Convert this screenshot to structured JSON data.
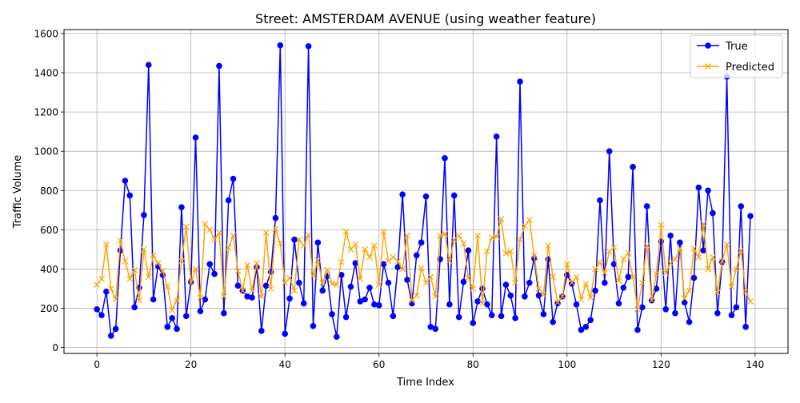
{
  "chart_data": {
    "type": "line",
    "title": "Street: AMSTERDAM AVENUE (using weather feature)",
    "xlabel": "Time Index",
    "ylabel": "Traffic Volume",
    "xlim": [
      -7,
      147
    ],
    "ylim": [
      -30,
      1620
    ],
    "xticks": [
      0,
      20,
      40,
      60,
      80,
      100,
      120,
      140
    ],
    "yticks": [
      0,
      200,
      400,
      600,
      800,
      1000,
      1200,
      1400,
      1600
    ],
    "xtick_labels": [
      "0",
      "20",
      "40",
      "60",
      "80",
      "100",
      "120",
      "140"
    ],
    "ytick_labels": [
      "0",
      "200",
      "400",
      "600",
      "800",
      "1000",
      "1200",
      "1400",
      "1600"
    ],
    "grid": true,
    "legend_position": "top-right",
    "series": [
      {
        "name": "True",
        "color": "#0000ff",
        "marker": "circle",
        "values": [
          195,
          165,
          285,
          60,
          95,
          495,
          850,
          775,
          205,
          305,
          675,
          1440,
          245,
          415,
          370,
          105,
          150,
          95,
          715,
          160,
          335,
          1070,
          185,
          245,
          425,
          375,
          1435,
          175,
          750,
          860,
          315,
          290,
          260,
          255,
          410,
          85,
          315,
          385,
          660,
          1540,
          70,
          250,
          550,
          330,
          225,
          1535,
          110,
          535,
          290,
          365,
          170,
          55,
          370,
          155,
          310,
          430,
          235,
          245,
          305,
          220,
          215,
          425,
          330,
          160,
          410,
          780,
          345,
          225,
          470,
          535,
          770,
          105,
          95,
          450,
          965,
          220,
          775,
          155,
          335,
          495,
          125,
          235,
          300,
          220,
          165,
          1075,
          160,
          320,
          265,
          150,
          1355,
          260,
          330,
          455,
          265,
          170,
          450,
          130,
          225,
          260,
          370,
          325,
          220,
          90,
          105,
          140,
          290,
          750,
          330,
          1000,
          425,
          225,
          305,
          360,
          920,
          90,
          205,
          720,
          240,
          300,
          540,
          195,
          570,
          175,
          535,
          230,
          130,
          355,
          815,
          495,
          800,
          685,
          175,
          435,
          1380,
          165,
          205,
          720,
          105,
          670
        ]
      },
      {
        "name": "Predicted",
        "color": "#ffa500",
        "marker": "x",
        "values": [
          320,
          350,
          525,
          300,
          245,
          545,
          440,
          350,
          395,
          240,
          500,
          360,
          470,
          430,
          390,
          310,
          190,
          240,
          440,
          615,
          330,
          400,
          255,
          630,
          600,
          550,
          585,
          260,
          510,
          570,
          390,
          290,
          420,
          290,
          430,
          260,
          585,
          300,
          605,
          530,
          330,
          355,
          290,
          550,
          520,
          575,
          365,
          445,
          330,
          395,
          325,
          320,
          435,
          590,
          500,
          525,
          350,
          500,
          460,
          520,
          320,
          590,
          440,
          460,
          440,
          400,
          570,
          240,
          265,
          405,
          330,
          360,
          260,
          570,
          580,
          440,
          550,
          570,
          530,
          355,
          300,
          570,
          225,
          490,
          560,
          565,
          655,
          480,
          490,
          330,
          550,
          620,
          650,
          470,
          300,
          270,
          520,
          360,
          230,
          260,
          425,
          330,
          360,
          245,
          325,
          255,
          400,
          435,
          380,
          490,
          510,
          340,
          450,
          480,
          360,
          195,
          330,
          520,
          240,
          375,
          625,
          380,
          430,
          450,
          505,
          250,
          290,
          505,
          460,
          630,
          400,
          460,
          280,
          440,
          525,
          310,
          400,
          495,
          285,
          235
        ]
      }
    ]
  }
}
